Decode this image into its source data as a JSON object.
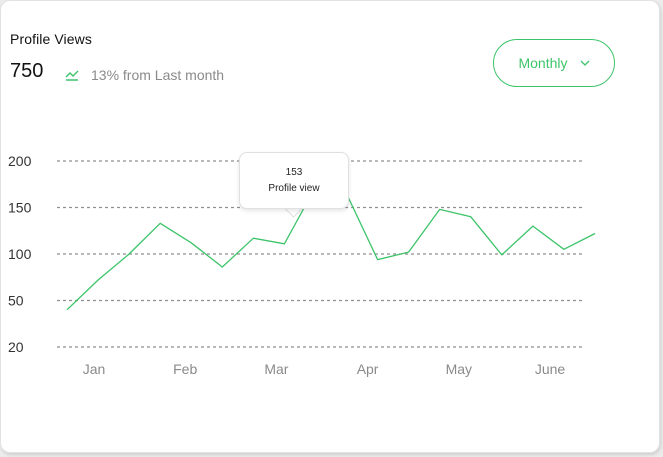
{
  "card": {
    "title": "Profile Views",
    "value": "750",
    "trend_icon": "trend-up-icon",
    "trend_text": "13% from Last month"
  },
  "dropdown": {
    "selected": "Monthly",
    "icon": "chevron-down-icon"
  },
  "colors": {
    "accent": "#3cc46a",
    "gridline": "#8f8f8f",
    "muted_text": "#8a8a8a"
  },
  "tooltip": {
    "value": "153",
    "label": "Profile view"
  },
  "chart_data": {
    "type": "line",
    "title": "",
    "xlabel": "",
    "ylabel": "",
    "y_ticks": [
      200,
      150,
      100,
      50,
      20
    ],
    "x_ticks": [
      "Jan",
      "Feb",
      "Mar",
      "Apr",
      "May",
      "June"
    ],
    "grid": true,
    "series": [
      {
        "values": [
          44,
          72,
          100,
          133,
          112,
          86,
          117,
          111,
          172,
          165,
          94,
          102,
          148,
          140,
          99,
          130,
          105,
          122
        ]
      }
    ]
  }
}
